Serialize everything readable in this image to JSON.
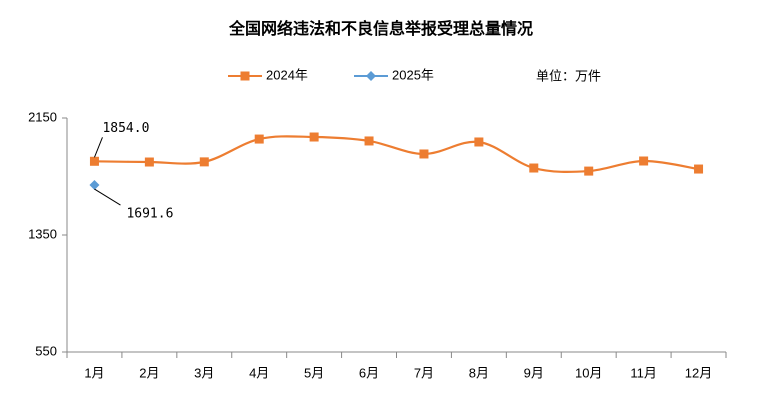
{
  "chart_data": {
    "type": "line",
    "title": "全国网络违法和不良信息举报受理总量情况",
    "unit_label": "单位：万件",
    "categories": [
      "1月",
      "2月",
      "3月",
      "4月",
      "5月",
      "6月",
      "7月",
      "8月",
      "9月",
      "10月",
      "11月",
      "12月"
    ],
    "series": [
      {
        "name": "2024年",
        "color": "#ed7d31",
        "marker": "square",
        "values": [
          1854.0,
          1849,
          1850,
          2006,
          2020,
          1993,
          1904,
          1986,
          1808,
          1787,
          1856,
          1801
        ],
        "value_labels": [
          "1854.0",
          null,
          null,
          null,
          null,
          null,
          null,
          null,
          null,
          null,
          null,
          null
        ]
      },
      {
        "name": "2025年",
        "color": "#5b9bd5",
        "marker": "diamond",
        "values": [
          1691.6,
          null,
          null,
          null,
          null,
          null,
          null,
          null,
          null,
          null,
          null,
          null
        ],
        "value_labels": [
          "1691.6",
          null,
          null,
          null,
          null,
          null,
          null,
          null,
          null,
          null,
          null,
          null
        ]
      }
    ],
    "ylim": [
      550,
      2150
    ],
    "yticks": [
      550,
      1350,
      2150
    ],
    "grid": false,
    "legend": "top"
  }
}
